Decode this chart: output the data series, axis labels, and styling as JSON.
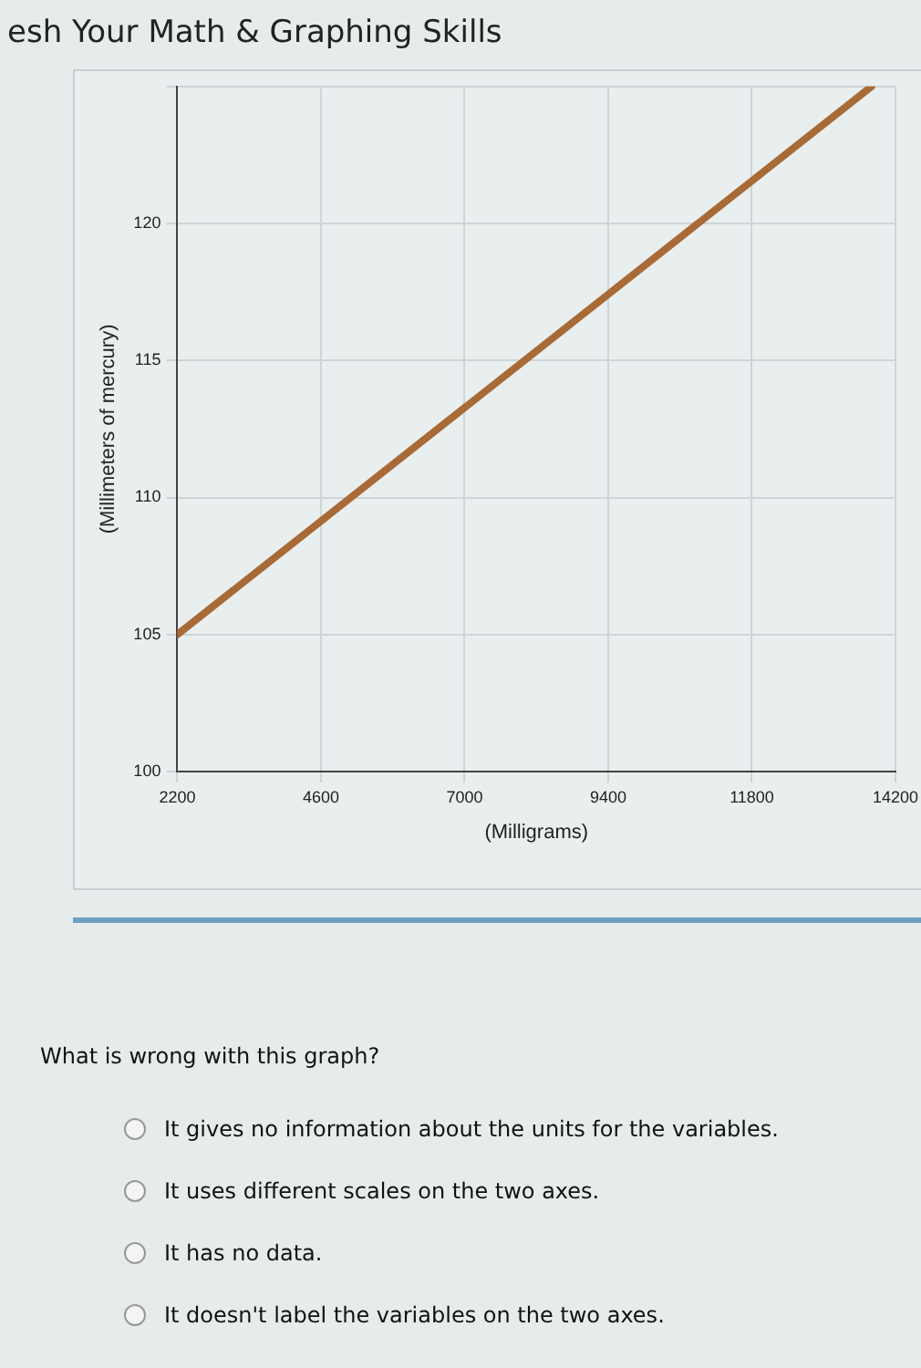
{
  "chart_data": {
    "type": "line",
    "title": "esh Your Math & Graphing Skills",
    "xlabel": "(Milligrams)",
    "ylabel": "(Millimeters of mercury)",
    "x": [
      2200,
      13800
    ],
    "series": [
      {
        "color": "#a86a36",
        "values": [
          105,
          125
        ]
      }
    ],
    "xlim": [
      2200,
      14200
    ],
    "xticks": [
      2200,
      4600,
      7000,
      9400,
      11800,
      14200
    ],
    "ylim": [
      100,
      125
    ],
    "yticks": [
      100,
      105,
      110,
      115,
      120,
      {
        "value": 125,
        "label": null
      }
    ],
    "grid": true,
    "legend": false,
    "marker": "none",
    "line_style": "solid",
    "annotations": [
      "What is wrong with this graph?",
      "It gives no information about the units for the variables.",
      "It uses different scales on the two axes.",
      "It has no data.",
      "It doesn't label the variables on the two axes."
    ]
  }
}
